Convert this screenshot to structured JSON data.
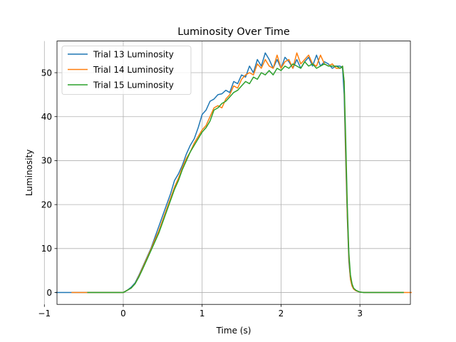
{
  "chart_data": {
    "type": "line",
    "title": "Luminosity Over Time",
    "xlabel": "Time (s)",
    "ylabel": "Luminosity",
    "xlim": [
      -0.84,
      3.64
    ],
    "ylim": [
      -2.7,
      57.2
    ],
    "xticks": [
      -1,
      0,
      1,
      2,
      3
    ],
    "yticks": [
      0,
      10,
      20,
      30,
      40,
      50
    ],
    "grid": true,
    "legend_position": "top-left",
    "series": [
      {
        "name": "Trial 13 Luminosity",
        "color": "#1f77b4",
        "x": [
          -0.85,
          0,
          0.05,
          0.1,
          0.15,
          0.2,
          0.25,
          0.3,
          0.35,
          0.4,
          0.45,
          0.5,
          0.55,
          0.6,
          0.65,
          0.7,
          0.75,
          0.8,
          0.85,
          0.9,
          0.95,
          1.0,
          1.05,
          1.1,
          1.15,
          1.2,
          1.25,
          1.3,
          1.35,
          1.4,
          1.45,
          1.5,
          1.55,
          1.6,
          1.65,
          1.7,
          1.75,
          1.8,
          1.85,
          1.9,
          1.95,
          2.0,
          2.05,
          2.1,
          2.15,
          2.2,
          2.25,
          2.3,
          2.35,
          2.4,
          2.45,
          2.5,
          2.55,
          2.6,
          2.65,
          2.7,
          2.75,
          2.78,
          2.8,
          2.82,
          2.84,
          2.86,
          2.88,
          2.9,
          2.92,
          2.95,
          3.0,
          3.05,
          3.1,
          3.2,
          3.3,
          3.4,
          3.55
        ],
        "y": [
          0,
          0,
          0.5,
          1.2,
          2.2,
          4,
          6,
          8,
          10,
          12.5,
          15,
          17.5,
          20,
          22.5,
          25.5,
          27,
          29,
          31.5,
          33.5,
          35,
          37.5,
          40.5,
          41.5,
          43.5,
          44,
          45,
          45.2,
          46,
          45.5,
          48,
          47.5,
          49.5,
          49,
          51.5,
          50,
          53,
          51.5,
          54.5,
          53,
          51,
          53,
          51,
          53.5,
          52.5,
          51,
          53,
          51,
          52.5,
          53.5,
          51.5,
          54,
          51.5,
          52.5,
          52,
          51,
          51.5,
          51.5,
          51,
          45,
          30,
          17,
          7,
          3,
          1.5,
          0.8,
          0.4,
          0.1,
          0,
          0,
          0,
          0,
          0,
          0
        ]
      },
      {
        "name": "Trial 14 Luminosity",
        "color": "#ff7f0e",
        "x": [
          -0.65,
          0,
          0.05,
          0.1,
          0.15,
          0.2,
          0.25,
          0.3,
          0.35,
          0.4,
          0.45,
          0.5,
          0.55,
          0.6,
          0.65,
          0.7,
          0.75,
          0.8,
          0.85,
          0.9,
          0.95,
          1.0,
          1.05,
          1.1,
          1.15,
          1.2,
          1.25,
          1.3,
          1.35,
          1.4,
          1.45,
          1.5,
          1.55,
          1.6,
          1.65,
          1.7,
          1.75,
          1.8,
          1.85,
          1.9,
          1.95,
          2.0,
          2.05,
          2.1,
          2.15,
          2.2,
          2.25,
          2.3,
          2.35,
          2.4,
          2.45,
          2.5,
          2.55,
          2.6,
          2.65,
          2.7,
          2.75,
          2.78,
          2.8,
          2.82,
          2.84,
          2.86,
          2.88,
          2.9,
          2.92,
          2.95,
          3.0,
          3.05,
          3.1,
          3.2,
          3.3,
          3.4,
          3.5,
          3.65
        ],
        "y": [
          0,
          0,
          0.5,
          1,
          2,
          3.8,
          5.8,
          7.8,
          9.8,
          12,
          14,
          16.5,
          19,
          21.5,
          24,
          26,
          28.5,
          30.5,
          32,
          34,
          35.5,
          37,
          38,
          40,
          42,
          42.5,
          42,
          44,
          45,
          47,
          46.5,
          48.5,
          49.5,
          50,
          49.5,
          52,
          51,
          53,
          51.5,
          51,
          54,
          51,
          52.5,
          53,
          51,
          54.5,
          52,
          53,
          54,
          52,
          51.5,
          54,
          52,
          51.5,
          52,
          51,
          51,
          51.5,
          48,
          32,
          18,
          8,
          3,
          1.5,
          0.8,
          0.4,
          0.1,
          0,
          0,
          0,
          0,
          0,
          0,
          0
        ]
      },
      {
        "name": "Trial 15 Luminosity",
        "color": "#2ca02c",
        "x": [
          -0.45,
          0,
          0.05,
          0.1,
          0.15,
          0.2,
          0.25,
          0.3,
          0.35,
          0.4,
          0.45,
          0.5,
          0.55,
          0.6,
          0.65,
          0.7,
          0.75,
          0.8,
          0.85,
          0.9,
          0.95,
          1.0,
          1.05,
          1.1,
          1.15,
          1.2,
          1.25,
          1.3,
          1.35,
          1.4,
          1.45,
          1.5,
          1.55,
          1.6,
          1.65,
          1.7,
          1.75,
          1.8,
          1.85,
          1.9,
          1.95,
          2.0,
          2.05,
          2.1,
          2.15,
          2.2,
          2.25,
          2.3,
          2.35,
          2.4,
          2.45,
          2.5,
          2.55,
          2.6,
          2.65,
          2.7,
          2.75,
          2.78,
          2.8,
          2.82,
          2.84,
          2.86,
          2.88,
          2.9,
          2.92,
          2.95,
          3.0,
          3.05,
          3.1,
          3.2,
          3.3,
          3.4,
          3.55
        ],
        "y": [
          0,
          0,
          0.5,
          1,
          2,
          3.6,
          5.5,
          7.5,
          9.5,
          11.5,
          13.5,
          16,
          18.5,
          21,
          23.5,
          25.5,
          28,
          30,
          32,
          33.5,
          35,
          36.5,
          37.5,
          39,
          41.5,
          42,
          43,
          43.5,
          44.5,
          45.5,
          46,
          47,
          48,
          47.5,
          49,
          48.5,
          50,
          49.5,
          50.5,
          49.5,
          51,
          50.5,
          51.5,
          51,
          52,
          51.5,
          51,
          52.5,
          51.5,
          52,
          51,
          51.5,
          52,
          51.5,
          51.5,
          51.5,
          51,
          51.5,
          48,
          35,
          20,
          9,
          4,
          2,
          1,
          0.5,
          0.1,
          0,
          0,
          0,
          0,
          0,
          0
        ]
      }
    ]
  }
}
